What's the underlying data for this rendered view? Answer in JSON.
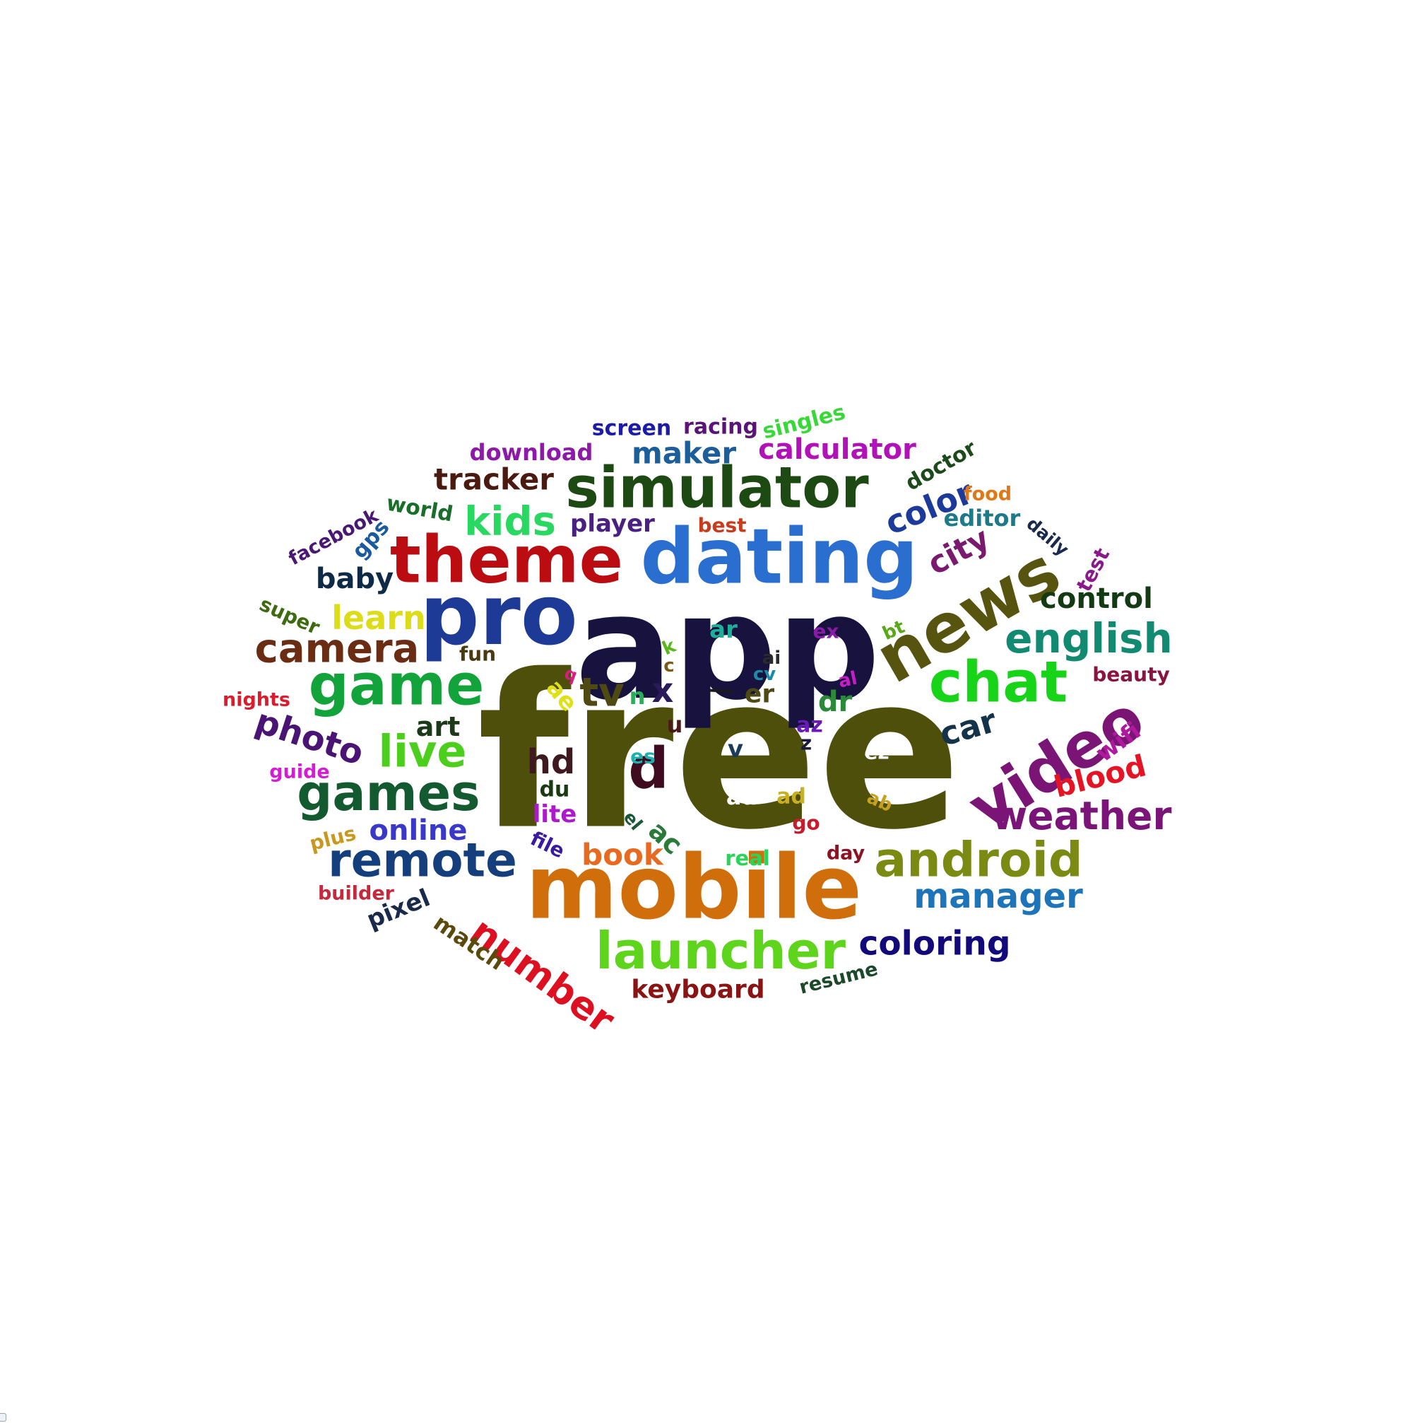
{
  "words": [
    {
      "text": "free",
      "color": "#4d4f0a"
    },
    {
      "text": "app",
      "color": "#17123e"
    },
    {
      "text": "mobile",
      "color": "#d06e0c"
    },
    {
      "text": "dating",
      "color": "#2a6fd0"
    },
    {
      "text": "pro",
      "color": "#1c3a96"
    },
    {
      "text": "theme",
      "color": "#bb0c12"
    },
    {
      "text": "news",
      "color": "#575410"
    },
    {
      "text": "simulator",
      "color": "#1d4a12"
    },
    {
      "text": "video",
      "color": "#7a1575"
    },
    {
      "text": "game",
      "color": "#12a43a"
    },
    {
      "text": "chat",
      "color": "#18d418"
    },
    {
      "text": "launcher",
      "color": "#5ed41c"
    },
    {
      "text": "games",
      "color": "#145a30"
    },
    {
      "text": "android",
      "color": "#7a8a12"
    },
    {
      "text": "remote",
      "color": "#143e7c"
    },
    {
      "text": "camera",
      "color": "#6a2c12"
    },
    {
      "text": "live",
      "color": "#4cce1c"
    },
    {
      "text": "english",
      "color": "#128a72"
    },
    {
      "text": "number",
      "color": "#dc1020"
    },
    {
      "text": "weather",
      "color": "#7a1478"
    },
    {
      "text": "kids",
      "color": "#28d860"
    },
    {
      "text": "manager",
      "color": "#1e74b8"
    },
    {
      "text": "photo",
      "color": "#4a1474"
    },
    {
      "text": "coloring",
      "color": "#120a7a"
    },
    {
      "text": "calculator",
      "color": "#b012b8"
    },
    {
      "text": "tracker",
      "color": "#4a1a10"
    },
    {
      "text": "color",
      "color": "#1c3a9a"
    },
    {
      "text": "control",
      "color": "#143a14"
    },
    {
      "text": "learn",
      "color": "#dcdc18"
    },
    {
      "text": "maker",
      "color": "#1c5e9a"
    },
    {
      "text": "car",
      "color": "#143248"
    },
    {
      "text": "d",
      "color": "#3e0c1e"
    },
    {
      "text": "tv",
      "color": "#4e4a12"
    },
    {
      "text": "blood",
      "color": "#e41424"
    },
    {
      "text": "city",
      "color": "#7a1a6e"
    },
    {
      "text": "baby",
      "color": "#0e2a46"
    },
    {
      "text": "hd",
      "color": "#3e1a20"
    },
    {
      "text": "online",
      "color": "#3a38c8"
    },
    {
      "text": "book",
      "color": "#e86a20"
    },
    {
      "text": "keyboard",
      "color": "#8a1414"
    },
    {
      "text": "player",
      "color": "#4a2080"
    },
    {
      "text": "download",
      "color": "#8e18a8"
    },
    {
      "text": "screen",
      "color": "#1c1ca8"
    },
    {
      "text": "racing",
      "color": "#5a1478"
    },
    {
      "text": "singles",
      "color": "#38d838"
    },
    {
      "text": "editor",
      "color": "#1c7a8a"
    },
    {
      "text": "world",
      "color": "#1a6e2a"
    },
    {
      "text": "x",
      "color": "#2a1a5a"
    },
    {
      "text": "art",
      "color": "#1c3a18"
    },
    {
      "text": "wifi",
      "color": "#b018a0"
    },
    {
      "text": "dr",
      "color": "#2a8a3a"
    },
    {
      "text": "ac",
      "color": "#2a7a3a"
    },
    {
      "text": "er",
      "color": "#4e4a12"
    },
    {
      "text": "ar",
      "color": "#1cb098"
    },
    {
      "text": "doctor",
      "color": "#1c4a1a"
    },
    {
      "text": "facebook",
      "color": "#4a1874"
    },
    {
      "text": "gps",
      "color": "#1a5a9e"
    },
    {
      "text": "super",
      "color": "#3e6a10"
    },
    {
      "text": "pixel",
      "color": "#1a2a4a"
    },
    {
      "text": "match",
      "color": "#5a4a0c"
    },
    {
      "text": "resume",
      "color": "#1a4a2a"
    },
    {
      "text": "fun",
      "color": "#4a3a10"
    },
    {
      "text": "beauty",
      "color": "#8a1440"
    },
    {
      "text": "nights",
      "color": "#dc1c2c"
    },
    {
      "text": "guide",
      "color": "#d41cd4"
    },
    {
      "text": "plus",
      "color": "#c89820"
    },
    {
      "text": "builder",
      "color": "#c8283c"
    },
    {
      "text": "file",
      "color": "#3a1aa0"
    },
    {
      "text": "real",
      "color": "#2ad458"
    },
    {
      "text": "day",
      "color": "#8a1424"
    },
    {
      "text": "food",
      "color": "#e07818"
    },
    {
      "text": "best",
      "color": "#c83c1c"
    },
    {
      "text": "daily",
      "color": "#1a2a4a"
    },
    {
      "text": "test",
      "color": "#8a1a8a"
    },
    {
      "text": "ex",
      "color": "#8a1aa8"
    },
    {
      "text": "bt",
      "color": "#58a818"
    },
    {
      "text": "ai",
      "color": "#2a2a2a"
    },
    {
      "text": "al",
      "color": "#c81cc8"
    },
    {
      "text": "cv",
      "color": "#1c8aa8"
    },
    {
      "text": "k",
      "color": "#58b818"
    },
    {
      "text": "c",
      "color": "#7a5a1a"
    },
    {
      "text": "q",
      "color": "#d81c80"
    },
    {
      "text": "ae",
      "color": "#e0e018"
    },
    {
      "text": "n",
      "color": "#28b058"
    },
    {
      "text": "u",
      "color": "#4a1a1a"
    },
    {
      "text": "v",
      "color": "#1c3a5a"
    },
    {
      "text": "az",
      "color": "#6a1ab8"
    },
    {
      "text": "z",
      "color": "#1a1a3a"
    },
    {
      "text": "ez",
      "color": "#ffffff"
    },
    {
      "text": "es",
      "color": "#1cb0b0"
    },
    {
      "text": "du",
      "color": "#1a3a12"
    },
    {
      "text": "lite",
      "color": "#b018d0"
    },
    {
      "text": "el",
      "color": "#1a5a3a"
    },
    {
      "text": "au",
      "color": "#ffffff"
    },
    {
      "text": "ad",
      "color": "#c8b020"
    },
    {
      "text": "go",
      "color": "#c81c2c"
    },
    {
      "text": "ab",
      "color": "#c8a020"
    },
    {
      "text": "\\",
      "color": "#1a1a1a"
    }
  ]
}
